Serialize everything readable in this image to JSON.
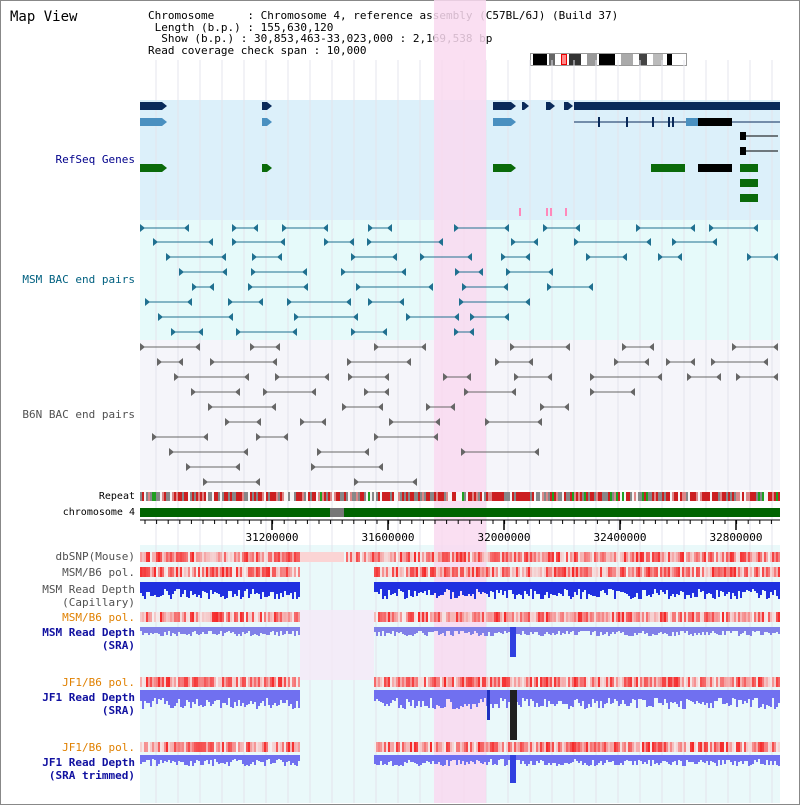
{
  "title": "Map View",
  "info": {
    "line1": "Chromosome     : Chromosome 4, reference assembly (C57BL/6J) (Build 37)",
    "line2": " Length (b.p.) : 155,630,120",
    "line3": "  Show (b.p.) : 30,853,463-33,023,000 : 2,169,538 bp",
    "line4": "Read coverage check span : 10,000"
  },
  "tracks": {
    "refseq": "RefSeq Genes",
    "msm_bac": "MSM BAC end pairs",
    "b6n_bac": "B6N BAC end pairs",
    "repeat": "Repeat",
    "chromosome": "chromosome 4",
    "dbsnp": "dbSNP(Mouse)",
    "msm_b6_pol": "MSM/B6 pol.",
    "msm_depth_cap_1": "MSM Read Depth",
    "msm_depth_cap_2": "(Capillary)",
    "msm_b6_pol2": "MSM/B6 pol.",
    "msm_depth_sra_1": "MSM Read Depth",
    "msm_depth_sra_2": "(SRA)",
    "jf1_b6_pol": "JF1/B6 pol.",
    "jf1_depth_sra_1": "JF1 Read Depth",
    "jf1_depth_sra_2": "(SRA)",
    "jf1_b6_pol2": "JF1/B6 pol.",
    "jf1_depth_trim_1": "JF1 Read Depth",
    "jf1_depth_trim_2": "(SRA trimmed)"
  },
  "axis_ticks": [
    "31200000",
    "31600000",
    "32000000",
    "32400000",
    "32800000"
  ],
  "colors": {
    "refseq_bg": "#dcf0fa",
    "msm_bg": "#e6fafa",
    "b6n_bg": "#f5f5fa",
    "highlight": "#f9d9f0",
    "refseq_label": "#00008b",
    "msm_label": "#006080",
    "b6n_label": "#505050",
    "pol_label": "#e08000",
    "depth_label": "#1010a0",
    "chrom_green": "#006400"
  }
}
